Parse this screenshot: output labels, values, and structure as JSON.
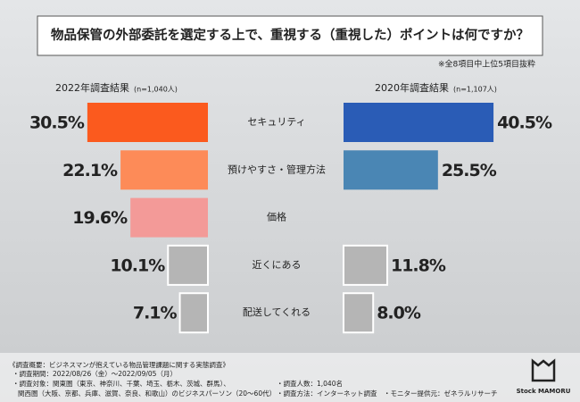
{
  "chart_data": {
    "type": "butterfly",
    "title": "物品保管の外部委託を選定する上で、重視する（重視した）ポイントは何ですか？",
    "note": "※全8項目中上位5項目抜粋",
    "categories": [
      "セキュリティ",
      "預けやすさ・管理方法",
      "価格",
      "近くにある",
      "配送してくれる"
    ],
    "series": [
      {
        "name": "2022年調査結果",
        "sample": "(n=1,040人)",
        "side": "left",
        "values": [
          30.5,
          22.1,
          19.6,
          10.1,
          7.1
        ],
        "value_labels": [
          "30.5%",
          "22.1%",
          "19.6%",
          "10.1%",
          "7.1%"
        ],
        "colors": [
          "#fb5a1e",
          "#fd8b58",
          "#f39a98",
          "#b5b5b5",
          "#b5b5b5"
        ],
        "label_colors": [
          "#fb5a1e",
          "#fd8b58",
          "#ef8482",
          "#444444",
          "#444444"
        ]
      },
      {
        "name": "2020年調査結果",
        "sample": "(n=1,107人)",
        "side": "right",
        "values": [
          40.5,
          25.5,
          null,
          11.8,
          8.0
        ],
        "value_labels": [
          "40.5%",
          "25.5%",
          null,
          "11.8%",
          "8.0%"
        ],
        "colors": [
          "#2a5cb6",
          "#4a86b4",
          null,
          "#b5b5b5",
          "#b5b5b5"
        ],
        "label_colors": [
          "#2a5cb6",
          "#4a86b4",
          null,
          "#444444",
          "#444444"
        ]
      }
    ],
    "footer": [
      "《調査概要：ビジネスマンが抱えている物品管理課題に関する実態調査》",
      "・調査期間：2022/08/26（金）〜2022/09/05（月）",
      "・調査対象：関東圏（東京、神奈川、千葉、埼玉、栃木、茨城、群馬）、",
      "関西圏（大阪、京都、兵庫、滋賀、奈良、和歌山）のビジネスパーソン（20〜60代）",
      "・調査人数：1,040名",
      "・調査方法：インターネット調査",
      "・モニター提供元：ゼネラルリサーチ"
    ],
    "logo": "Stock MAMORU"
  }
}
